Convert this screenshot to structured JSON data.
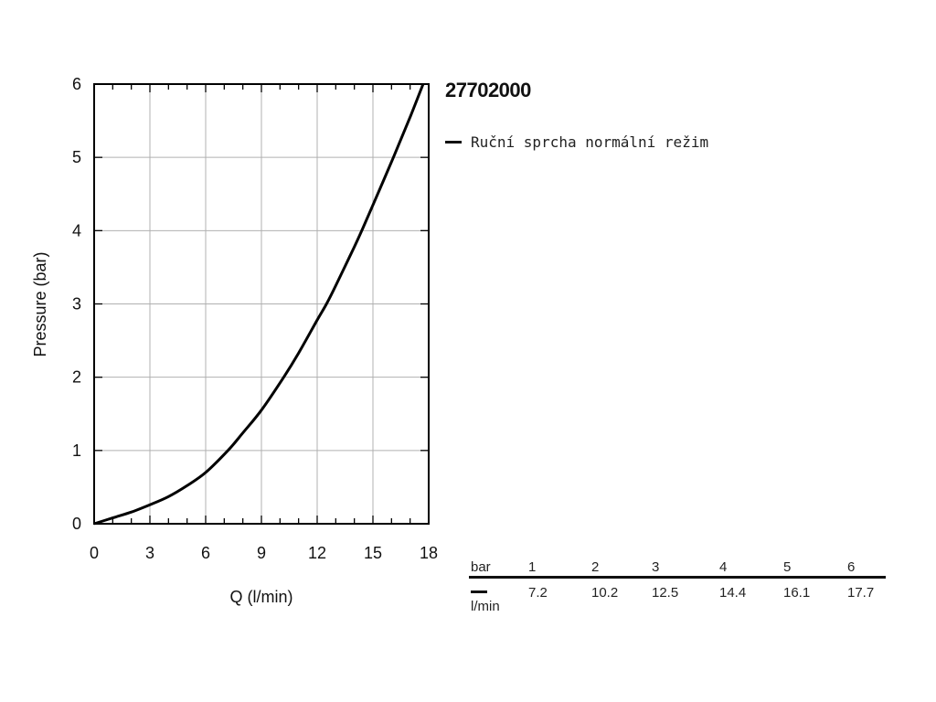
{
  "model_number": "27702000",
  "legend": {
    "label": "Ruční sprcha normální režim"
  },
  "colors": {
    "curve": "#000000",
    "grid": "#b0b0b0",
    "axis": "#000000"
  },
  "chart_data": {
    "type": "line",
    "title": "",
    "xlabel": "Q (l/min)",
    "ylabel": "Pressure (bar)",
    "xlim": [
      0,
      18
    ],
    "ylim": [
      0,
      6
    ],
    "xticks": [
      0,
      3,
      6,
      9,
      12,
      15,
      18
    ],
    "yticks": [
      0,
      1,
      2,
      3,
      4,
      5,
      6
    ],
    "grid": true,
    "legend_position": "right of plot",
    "series": [
      {
        "name": "Ruční sprcha normální režim",
        "x": [
          0,
          1,
          2,
          3,
          4,
          5,
          6,
          7.2,
          8,
          9,
          10.2,
          11,
          12,
          12.5,
          13,
          14,
          14.4,
          15,
          16.1,
          17,
          17.7
        ],
        "y": [
          0,
          0.08,
          0.16,
          0.26,
          0.37,
          0.52,
          0.7,
          1.0,
          1.24,
          1.55,
          2.0,
          2.33,
          2.78,
          3.0,
          3.25,
          3.78,
          4.0,
          4.35,
          5.0,
          5.55,
          6.0
        ]
      }
    ]
  },
  "flow_table": {
    "row1_label": "bar",
    "row2_label": "l/min",
    "columns": [
      {
        "bar": "1",
        "lmin": "7.2"
      },
      {
        "bar": "2",
        "lmin": "10.2"
      },
      {
        "bar": "3",
        "lmin": "12.5"
      },
      {
        "bar": "4",
        "lmin": "14.4"
      },
      {
        "bar": "5",
        "lmin": "16.1"
      },
      {
        "bar": "6",
        "lmin": "17.7"
      }
    ]
  }
}
